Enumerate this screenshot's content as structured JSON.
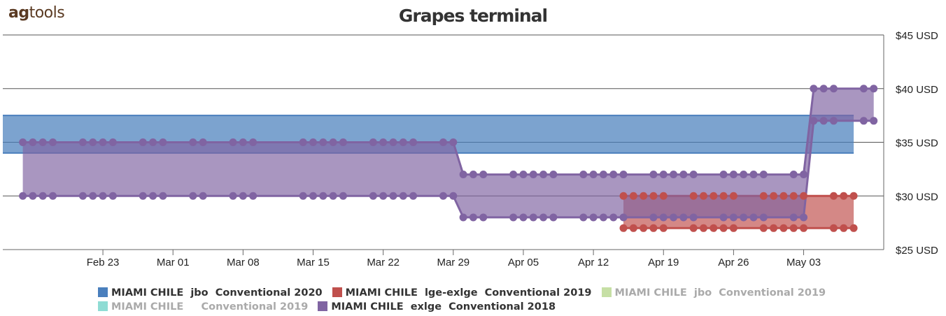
{
  "logo": {
    "text_a": "ag",
    "text_b": "tools"
  },
  "chart_data": {
    "type": "area",
    "title": "Grapes terminal",
    "y_unit_suffix": " USD",
    "y_prefix": "$",
    "ylim": [
      25,
      45
    ],
    "y_ticks": [
      25,
      30,
      35,
      40,
      45
    ],
    "y_tick_labels": [
      "$25 USD",
      "$30 USD",
      "$35 USD",
      "$40 USD",
      "$45 USD"
    ],
    "x_tick_labels": [
      "Feb 23",
      "Mar 01",
      "Mar 08",
      "Mar 15",
      "Mar 22",
      "Mar 29",
      "Apr 05",
      "Apr 12",
      "Apr 19",
      "Apr 26",
      "May 03"
    ],
    "grid": true,
    "legend_position": "bottom",
    "series": [
      {
        "name": "MIAMI CHILE  jbo  Conventional 2020",
        "color": "#4a7fbd",
        "type": "range",
        "visible": true,
        "x_start": "2020-02-13",
        "x_end": "2020-05-08",
        "low": 34,
        "high": 37.5,
        "markers": false
      },
      {
        "name": "MIAMI CHILE  lge-exlge  Conventional 2019",
        "color": "#c0504d",
        "type": "range",
        "visible": true,
        "points": [
          {
            "x": "2020-04-15",
            "low": 27,
            "high": 30
          },
          {
            "x": "2020-04-16",
            "low": 27,
            "high": 30
          },
          {
            "x": "2020-04-17",
            "low": 27,
            "high": 30
          },
          {
            "x": "2020-04-18",
            "low": 27,
            "high": 30
          },
          {
            "x": "2020-04-19",
            "low": 27,
            "high": 30
          },
          {
            "x": "2020-04-22",
            "low": 27,
            "high": 30
          },
          {
            "x": "2020-04-23",
            "low": 27,
            "high": 30
          },
          {
            "x": "2020-04-24",
            "low": 27,
            "high": 30
          },
          {
            "x": "2020-04-25",
            "low": 27,
            "high": 30
          },
          {
            "x": "2020-04-26",
            "low": 27,
            "high": 30
          },
          {
            "x": "2020-04-29",
            "low": 27,
            "high": 30
          },
          {
            "x": "2020-04-30",
            "low": 27,
            "high": 30
          },
          {
            "x": "2020-05-01",
            "low": 27,
            "high": 30
          },
          {
            "x": "2020-05-02",
            "low": 27,
            "high": 30
          },
          {
            "x": "2020-05-03",
            "low": 27,
            "high": 30
          },
          {
            "x": "2020-05-06",
            "low": 27,
            "high": 30
          },
          {
            "x": "2020-05-07",
            "low": 27,
            "high": 30
          },
          {
            "x": "2020-05-08",
            "low": 27,
            "high": 30
          }
        ]
      },
      {
        "name": "MIAMI CHILE  jbo  Conventional 2019",
        "color": "#c6dfa5",
        "type": "range",
        "visible": false,
        "points": []
      },
      {
        "name": "MIAMI CHILE     Conventional 2019",
        "color": "#8fdcd4",
        "type": "range",
        "visible": false,
        "points": []
      },
      {
        "name": "MIAMI CHILE  exlge  Conventional 2018",
        "color": "#8064a2",
        "type": "range",
        "visible": true,
        "points": [
          {
            "x": "2020-02-15",
            "low": 30,
            "high": 35
          },
          {
            "x": "2020-02-16",
            "low": 30,
            "high": 35
          },
          {
            "x": "2020-02-17",
            "low": 30,
            "high": 35
          },
          {
            "x": "2020-02-18",
            "low": 30,
            "high": 35
          },
          {
            "x": "2020-02-21",
            "low": 30,
            "high": 35
          },
          {
            "x": "2020-02-22",
            "low": 30,
            "high": 35
          },
          {
            "x": "2020-02-23",
            "low": 30,
            "high": 35
          },
          {
            "x": "2020-02-24",
            "low": 30,
            "high": 35
          },
          {
            "x": "2020-02-27",
            "low": 30,
            "high": 35
          },
          {
            "x": "2020-02-28",
            "low": 30,
            "high": 35
          },
          {
            "x": "2020-02-29",
            "low": 30,
            "high": 35
          },
          {
            "x": "2020-03-03",
            "low": 30,
            "high": 35
          },
          {
            "x": "2020-03-04",
            "low": 30,
            "high": 35
          },
          {
            "x": "2020-03-07",
            "low": 30,
            "high": 35
          },
          {
            "x": "2020-03-08",
            "low": 30,
            "high": 35
          },
          {
            "x": "2020-03-09",
            "low": 30,
            "high": 35
          },
          {
            "x": "2020-03-14",
            "low": 30,
            "high": 35
          },
          {
            "x": "2020-03-15",
            "low": 30,
            "high": 35
          },
          {
            "x": "2020-03-16",
            "low": 30,
            "high": 35
          },
          {
            "x": "2020-03-17",
            "low": 30,
            "high": 35
          },
          {
            "x": "2020-03-18",
            "low": 30,
            "high": 35
          },
          {
            "x": "2020-03-21",
            "low": 30,
            "high": 35
          },
          {
            "x": "2020-03-22",
            "low": 30,
            "high": 35
          },
          {
            "x": "2020-03-23",
            "low": 30,
            "high": 35
          },
          {
            "x": "2020-03-24",
            "low": 30,
            "high": 35
          },
          {
            "x": "2020-03-25",
            "low": 30,
            "high": 35
          },
          {
            "x": "2020-03-28",
            "low": 30,
            "high": 35
          },
          {
            "x": "2020-03-29",
            "low": 30,
            "high": 35
          },
          {
            "x": "2020-03-30",
            "low": 28,
            "high": 32
          },
          {
            "x": "2020-03-31",
            "low": 28,
            "high": 32
          },
          {
            "x": "2020-04-01",
            "low": 28,
            "high": 32
          },
          {
            "x": "2020-04-04",
            "low": 28,
            "high": 32
          },
          {
            "x": "2020-04-05",
            "low": 28,
            "high": 32
          },
          {
            "x": "2020-04-06",
            "low": 28,
            "high": 32
          },
          {
            "x": "2020-04-07",
            "low": 28,
            "high": 32
          },
          {
            "x": "2020-04-08",
            "low": 28,
            "high": 32
          },
          {
            "x": "2020-04-11",
            "low": 28,
            "high": 32
          },
          {
            "x": "2020-04-12",
            "low": 28,
            "high": 32
          },
          {
            "x": "2020-04-13",
            "low": 28,
            "high": 32
          },
          {
            "x": "2020-04-14",
            "low": 28,
            "high": 32
          },
          {
            "x": "2020-04-15",
            "low": 28,
            "high": 32
          },
          {
            "x": "2020-04-18",
            "low": 28,
            "high": 32
          },
          {
            "x": "2020-04-19",
            "low": 28,
            "high": 32
          },
          {
            "x": "2020-04-20",
            "low": 28,
            "high": 32
          },
          {
            "x": "2020-04-21",
            "low": 28,
            "high": 32
          },
          {
            "x": "2020-04-22",
            "low": 28,
            "high": 32
          },
          {
            "x": "2020-04-25",
            "low": 28,
            "high": 32
          },
          {
            "x": "2020-04-26",
            "low": 28,
            "high": 32
          },
          {
            "x": "2020-04-27",
            "low": 28,
            "high": 32
          },
          {
            "x": "2020-04-28",
            "low": 28,
            "high": 32
          },
          {
            "x": "2020-04-29",
            "low": 28,
            "high": 32
          },
          {
            "x": "2020-05-02",
            "low": 28,
            "high": 32
          },
          {
            "x": "2020-05-03",
            "low": 28,
            "high": 32
          },
          {
            "x": "2020-05-04",
            "low": 37,
            "high": 40
          },
          {
            "x": "2020-05-05",
            "low": 37,
            "high": 40
          },
          {
            "x": "2020-05-06",
            "low": 37,
            "high": 40
          },
          {
            "x": "2020-05-09",
            "low": 37,
            "high": 40
          },
          {
            "x": "2020-05-10",
            "low": 37,
            "high": 40
          }
        ]
      }
    ]
  }
}
